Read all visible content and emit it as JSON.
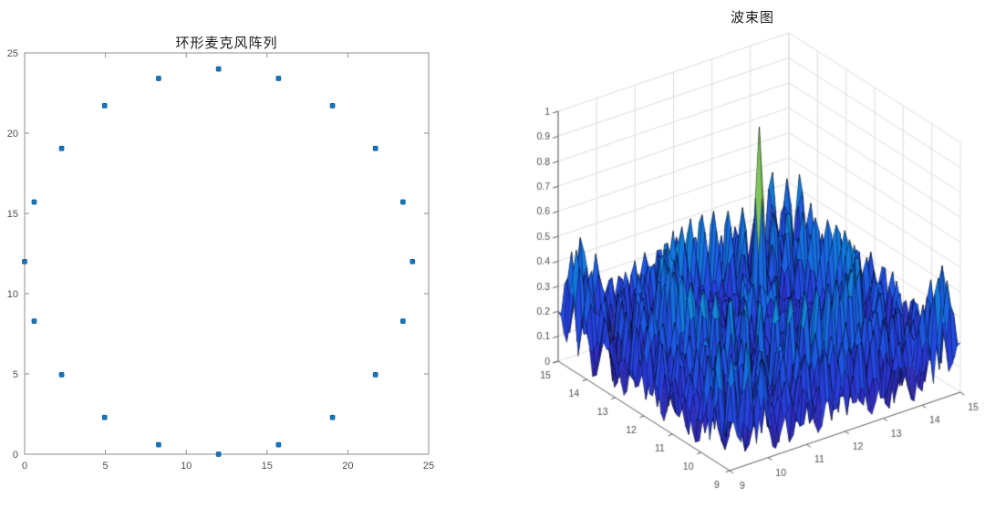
{
  "page": {
    "background": "#ffffff"
  },
  "chart_data": [
    {
      "type": "scatter",
      "title": "环形麦克风阵列",
      "xlabel": "",
      "ylabel": "",
      "xlim": [
        0,
        25
      ],
      "ylim": [
        0,
        25
      ],
      "xticks": [
        0,
        5,
        10,
        15,
        20,
        25
      ],
      "yticks": [
        0,
        5,
        10,
        15,
        20,
        25
      ],
      "grid": false,
      "box": true,
      "axis_color": "#8c8c8c",
      "tick_label_color": "#4d4d4d",
      "marker": {
        "shape": "square",
        "size": 5,
        "color": "#1575bb",
        "edge_color": "#0d5c9d"
      },
      "points_note": "20 microphones on a circle of radius 12 centred at (12,12), one every 18 degrees",
      "points": [
        [
          24,
          12
        ],
        [
          23.41,
          15.71
        ],
        [
          21.71,
          19.05
        ],
        [
          19.05,
          21.71
        ],
        [
          15.71,
          23.41
        ],
        [
          12,
          24
        ],
        [
          8.29,
          23.41
        ],
        [
          4.95,
          21.71
        ],
        [
          2.29,
          19.05
        ],
        [
          0.59,
          15.71
        ],
        [
          0,
          12
        ],
        [
          0.59,
          8.29
        ],
        [
          2.29,
          4.95
        ],
        [
          4.95,
          2.29
        ],
        [
          8.29,
          0.59
        ],
        [
          12,
          0
        ],
        [
          15.71,
          0.59
        ],
        [
          19.05,
          2.29
        ],
        [
          21.71,
          4.95
        ],
        [
          23.41,
          8.29
        ]
      ]
    },
    {
      "type": "surface",
      "title": "波束图",
      "xlim": [
        9,
        15
      ],
      "ylim": [
        9,
        15
      ],
      "zlim": [
        0,
        1
      ],
      "xticks": [
        9,
        10,
        11,
        12,
        13,
        14,
        15
      ],
      "yticks": [
        9,
        10,
        11,
        12,
        13,
        14,
        15
      ],
      "zticks": [
        0,
        0.1,
        0.2,
        0.3,
        0.4,
        0.5,
        0.6,
        0.7,
        0.8,
        0.9,
        1
      ],
      "grid": true,
      "grid_color": "#dcdcdc",
      "axis_color": "#5a5a5a",
      "tick_label_color": "#4d4d4d",
      "colormap": "parula",
      "mesh_edge_color": "rgba(0,0,0,0.55)",
      "peak": {
        "x": 12,
        "y": 12,
        "z": 1
      },
      "sidelobe_level_range": [
        0.3,
        0.5
      ],
      "surface_model": {
        "kind": "delay-and-sum beampattern of circular microphone array focused at (12,12)",
        "mics": 20,
        "array_center": [
          12,
          12
        ],
        "array_radius": 12,
        "wavenumber": 11,
        "grid_points": 61
      }
    }
  ]
}
